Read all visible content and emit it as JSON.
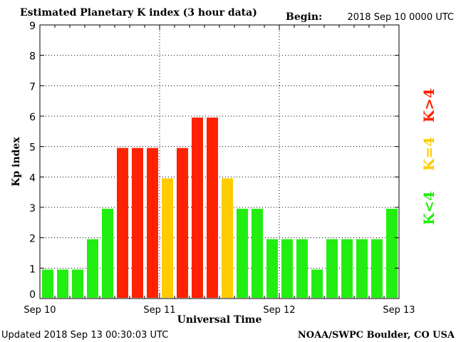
{
  "chart_data": {
    "type": "bar",
    "title": "Estimated Planetary K index (3 hour data)",
    "begin_label": "Begin:",
    "begin_value": "2018 Sep 10 0000 UTC",
    "xlabel": "Universal Time",
    "ylabel": "Kp index",
    "ylim": [
      0,
      9
    ],
    "yticks": [
      "0",
      "1",
      "2",
      "3",
      "4",
      "5",
      "6",
      "7",
      "8",
      "9"
    ],
    "xticks": [
      "Sep 10",
      "Sep 11",
      "Sep 12",
      "Sep 13"
    ],
    "values": [
      1,
      1,
      1,
      2,
      3,
      5,
      5,
      5,
      4,
      5,
      6,
      6,
      4,
      3,
      3,
      2,
      2,
      2,
      1,
      2,
      2,
      2,
      2,
      3
    ],
    "grid": true,
    "legend": {
      "placement": "right",
      "entries": [
        {
          "label": "K<4",
          "color": "#22ee11"
        },
        {
          "label": "K=4",
          "color": "#ffcc00"
        },
        {
          "label": "K>4",
          "color": "#ff2200"
        }
      ]
    },
    "colors": {
      "below": "#22ee11",
      "equal": "#ffcc00",
      "above": "#ff2200"
    },
    "footer_left": "Updated 2018 Sep 13 00:30:03 UTC",
    "footer_right": "NOAA/SWPC Boulder, CO USA"
  }
}
